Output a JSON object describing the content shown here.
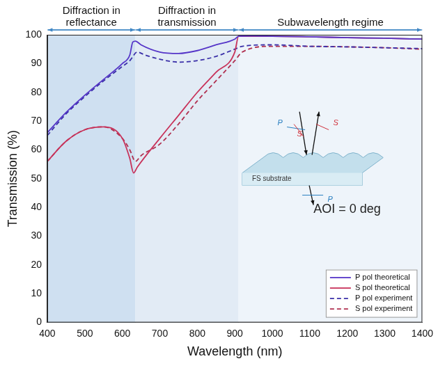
{
  "chart_data": {
    "type": "line",
    "x_label": "Wavelength (nm)",
    "y_label": "Transmission (%)",
    "xlim": [
      400,
      1400
    ],
    "xticks": [
      400,
      500,
      600,
      700,
      800,
      900,
      1000,
      1100,
      1200,
      1300,
      1400
    ],
    "ylim": [
      0,
      100
    ],
    "yticks": [
      0,
      10,
      20,
      30,
      40,
      50,
      60,
      70,
      80,
      90,
      100
    ],
    "grid": false,
    "legend": "lower right",
    "regions": [
      {
        "label": "Diffraction in reflectance",
        "from": 400,
        "to": 635,
        "color": "#cfe0f1"
      },
      {
        "label": "Diffraction in transmission",
        "from": 635,
        "to": 910,
        "color": "#e2ebf5"
      },
      {
        "label": "Subwavelength regime",
        "from": 910,
        "to": 1400,
        "color": "#eef4fa"
      }
    ],
    "annotations": [
      {
        "text": "AOI = 0 deg"
      }
    ],
    "inset": {
      "substrate": "FS substrate",
      "polarizations": [
        "P",
        "S"
      ]
    },
    "series": [
      {
        "name": "P pol theoretical",
        "color": "#5535c8",
        "line_style": "solid",
        "x": [
          400,
          450,
          500,
          550,
          600,
          620,
          628,
          635,
          650,
          700,
          750,
          800,
          850,
          900,
          910,
          950,
          1000,
          1100,
          1200,
          1300,
          1400
        ],
        "values": [
          66,
          73,
          79,
          84.5,
          90,
          93,
          97.5,
          97.8,
          96.5,
          94,
          93.5,
          94.5,
          96.5,
          98.5,
          99.5,
          99.6,
          99.5,
          99.3,
          99,
          98.8,
          98.5
        ]
      },
      {
        "name": "S pol theoretical",
        "color": "#c8325a",
        "line_style": "solid",
        "x": [
          400,
          450,
          500,
          550,
          600,
          620,
          630,
          640,
          700,
          750,
          800,
          850,
          900,
          910,
          950,
          1000,
          1100,
          1200,
          1300,
          1400
        ],
        "values": [
          56,
          63,
          67,
          68,
          64,
          57,
          52,
          54,
          64,
          72,
          80,
          87,
          94,
          99.5,
          99.5,
          99.5,
          99.3,
          99,
          98.8,
          98.5
        ]
      },
      {
        "name": "P pol experiment",
        "color": "#3a2fa8",
        "line_style": "dashed",
        "x": [
          400,
          450,
          500,
          550,
          600,
          620,
          640,
          660,
          700,
          750,
          800,
          850,
          900,
          920,
          1000,
          1100,
          1200,
          1300,
          1400
        ],
        "values": [
          65,
          72.5,
          78.5,
          84,
          89,
          91,
          94,
          93,
          91.5,
          90.5,
          91,
          92.5,
          95,
          96,
          96.5,
          96,
          95.8,
          95.5,
          95.2
        ]
      },
      {
        "name": "S pol experiment",
        "color": "#b03050",
        "line_style": "dashed",
        "x": [
          400,
          450,
          500,
          550,
          600,
          620,
          635,
          650,
          700,
          750,
          800,
          850,
          900,
          920,
          1000,
          1100,
          1200,
          1300,
          1400
        ],
        "values": [
          56,
          63,
          67,
          68,
          64,
          60,
          56,
          58,
          62,
          69,
          77,
          84,
          91,
          94,
          96,
          96,
          95.8,
          95.5,
          95
        ]
      }
    ]
  }
}
